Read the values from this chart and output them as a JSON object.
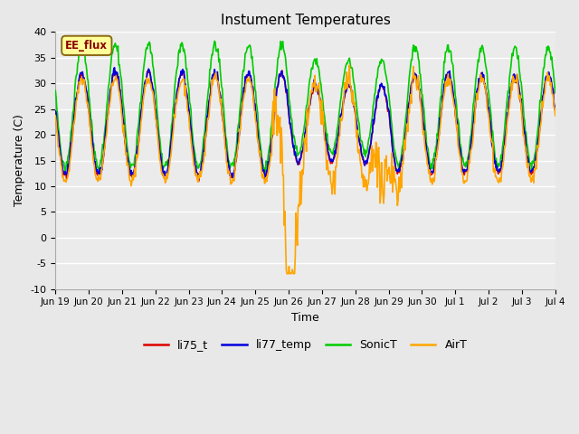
{
  "title": "Instument Temperatures",
  "xlabel": "Time",
  "ylabel": "Temperature (C)",
  "ylim": [
    -10,
    40
  ],
  "fig_facecolor": "#e8e8e8",
  "ax_facecolor": "#ebebeb",
  "grid_color": "#ffffff",
  "annotation_text": "EE_flux",
  "annotation_bg": "#ffff99",
  "annotation_edge": "#8b6914",
  "annotation_text_color": "#8b0000",
  "line_colors": {
    "li75_t": "#dd0000",
    "li77_temp": "#0000dd",
    "SonicT": "#00cc00",
    "AirT": "#ffa500"
  },
  "line_lw": 1.2,
  "legend_labels": [
    "li75_t",
    "li77_temp",
    "SonicT",
    "AirT"
  ],
  "legend_colors": [
    "#dd0000",
    "#0000dd",
    "#00cc00",
    "#ffa500"
  ],
  "xtick_labels": [
    "Jun 19",
    "Jun 20",
    "Jun 21",
    "Jun 22",
    "Jun 23",
    "Jun 24",
    "Jun 25",
    "Jun 26",
    "Jun 27",
    "Jun 28",
    "Jun 29",
    "Jun 30",
    "Jul 1",
    "Jul 2",
    "Jul 3",
    "Jul 4"
  ],
  "ytick_vals": [
    -10,
    -5,
    0,
    5,
    10,
    15,
    20,
    25,
    30,
    35,
    40
  ]
}
